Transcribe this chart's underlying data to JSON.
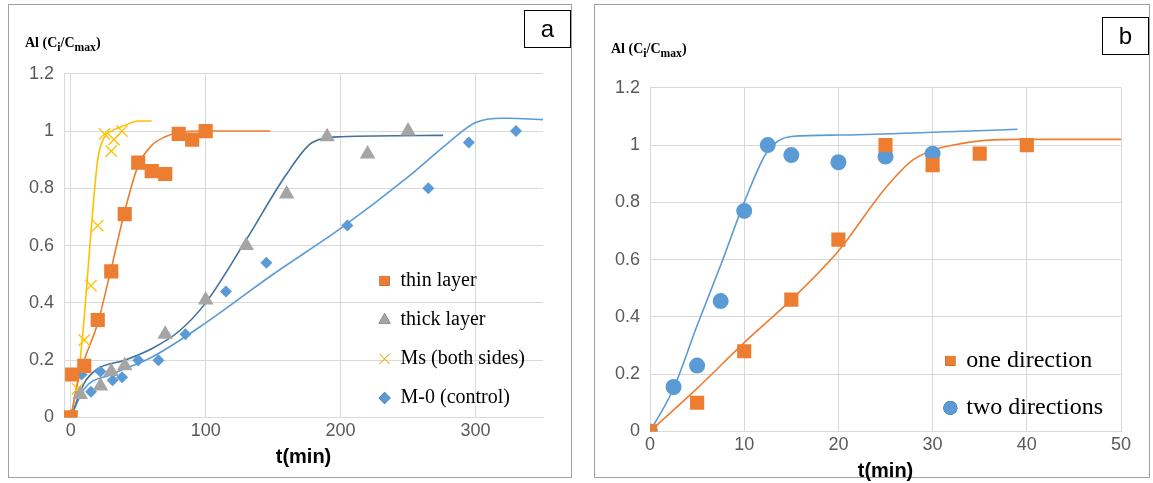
{
  "chart_data": [
    {
      "type": "scatter",
      "xlabel": "t(min)",
      "ylabel": "Al (C$_{i}$/C$_{max}$)",
      "annotations": [
        "a"
      ],
      "xlim": [
        -5,
        350
      ],
      "xticks": [
        0,
        100,
        200,
        300
      ],
      "ylim": [
        0,
        1.2
      ],
      "yticks": [
        0,
        0.2,
        0.4,
        0.6,
        0.8,
        1,
        1.2
      ],
      "grid": true,
      "legend": "bottom right",
      "series": [
        {
          "type": "line",
          "marker": "none",
          "color": "#ed7d31",
          "x": [
            0,
            5,
            10,
            20,
            30,
            40,
            50,
            60,
            70,
            80,
            100,
            148
          ],
          "values": [
            0,
            0.12,
            0.2,
            0.33,
            0.52,
            0.72,
            0.88,
            0.95,
            0.98,
            0.995,
            1.0,
            1.0
          ]
        },
        {
          "type": "line",
          "marker": "none",
          "color": "#ffc000",
          "x": [
            0,
            5,
            10,
            15,
            20,
            25,
            30,
            40,
            50,
            60
          ],
          "values": [
            0,
            0.12,
            0.35,
            0.65,
            0.9,
            0.98,
            1.0,
            1.02,
            1.035,
            1.035
          ]
        },
        {
          "type": "line",
          "marker": "none",
          "color": "#41719c",
          "x": [
            0,
            10,
            20,
            40,
            60,
            80,
            100,
            130,
            160,
            179,
            200,
            276
          ],
          "values": [
            0,
            0.12,
            0.17,
            0.2,
            0.24,
            0.3,
            0.4,
            0.62,
            0.85,
            0.96,
            0.98,
            0.985
          ]
        },
        {
          "type": "line",
          "marker": "none",
          "color": "#5b9bd5",
          "x": [
            0,
            10,
            30,
            60,
            100,
            150,
            200,
            250,
            280,
            300,
            320,
            350
          ],
          "values": [
            0,
            0.1,
            0.15,
            0.21,
            0.33,
            0.5,
            0.66,
            0.84,
            0.96,
            1.03,
            1.045,
            1.04
          ]
        },
        {
          "name": "thin layer",
          "type": "scatter",
          "marker": "square",
          "color": "#ed7d31",
          "x": [
            0,
            1,
            10,
            20,
            30,
            40,
            50,
            60,
            70,
            80,
            90,
            100
          ],
          "values": [
            0,
            0.15,
            0.18,
            0.34,
            0.51,
            0.71,
            0.89,
            0.86,
            0.85,
            0.99,
            0.97,
            1.0
          ]
        },
        {
          "name": "thick layer",
          "type": "scatter",
          "marker": "triangle",
          "color": "#a5a5a5",
          "x": [
            0,
            7,
            22,
            30,
            40,
            70,
            100,
            130,
            160,
            190,
            220,
            250
          ],
          "values": [
            0,
            0.08,
            0.11,
            0.16,
            0.18,
            0.29,
            0.41,
            0.6,
            0.78,
            0.98,
            0.92,
            1.0
          ]
        },
        {
          "name": "Ms (both sides)",
          "type": "scatter",
          "marker": "cross",
          "color": "#ffc000",
          "x": [
            0,
            5,
            10,
            15,
            20,
            25,
            30,
            32,
            38
          ],
          "values": [
            0,
            0.1,
            0.27,
            0.46,
            0.67,
            0.99,
            0.93,
            0.97,
            1.0
          ]
        },
        {
          "name": "M-0 (control)",
          "type": "scatter",
          "marker": "diamond",
          "color": "#5b9bd5",
          "x": [
            0,
            8,
            15,
            22,
            31,
            38,
            50,
            65,
            85,
            115,
            145,
            205,
            265,
            295,
            330
          ],
          "values": [
            0,
            0.15,
            0.09,
            0.16,
            0.13,
            0.14,
            0.2,
            0.2,
            0.29,
            0.44,
            0.54,
            0.67,
            0.8,
            0.96,
            1.0
          ]
        }
      ]
    },
    {
      "type": "scatter",
      "xlabel": "t(min)",
      "ylabel": "Al (C$_{i}$/C$_{max}$)",
      "annotations": [
        "b"
      ],
      "xlim": [
        0,
        50
      ],
      "xticks": [
        0,
        10,
        20,
        30,
        40,
        50
      ],
      "ylim": [
        0,
        1.2
      ],
      "yticks": [
        0,
        0.2,
        0.4,
        0.6,
        0.8,
        1,
        1.2
      ],
      "grid": true,
      "legend": "bottom right",
      "series": [
        {
          "type": "line",
          "marker": "none",
          "color": "#5b9bd5",
          "x": [
            0,
            2.5,
            5,
            7.5,
            10,
            12.5,
            15,
            20,
            30,
            39
          ],
          "values": [
            0,
            0.15,
            0.37,
            0.58,
            0.8,
            0.98,
            1.03,
            1.035,
            1.045,
            1.055
          ]
        },
        {
          "type": "line",
          "marker": "none",
          "color": "#ed7d31",
          "x": [
            0,
            5,
            10,
            15,
            20,
            25,
            28,
            33,
            40,
            50
          ],
          "values": [
            0,
            0.15,
            0.31,
            0.46,
            0.63,
            0.85,
            0.95,
            1.005,
            1.02,
            1.02
          ]
        },
        {
          "name": "one direction",
          "type": "scatter",
          "marker": "square",
          "color": "#ed7d31",
          "x": [
            0,
            5,
            10,
            15,
            20,
            25,
            30,
            35,
            40
          ],
          "values": [
            0,
            0.1,
            0.28,
            0.46,
            0.67,
            1.0,
            0.93,
            0.97,
            1.0
          ]
        },
        {
          "name": "two directions",
          "type": "scatter",
          "marker": "circle",
          "color": "#5b9bd5",
          "x": [
            0,
            2.5,
            5,
            7.5,
            10,
            12.5,
            15,
            20,
            25,
            30
          ],
          "values": [
            0,
            0.155,
            0.23,
            0.455,
            0.77,
            1.0,
            0.965,
            0.94,
            0.96,
            0.97
          ]
        }
      ]
    }
  ]
}
